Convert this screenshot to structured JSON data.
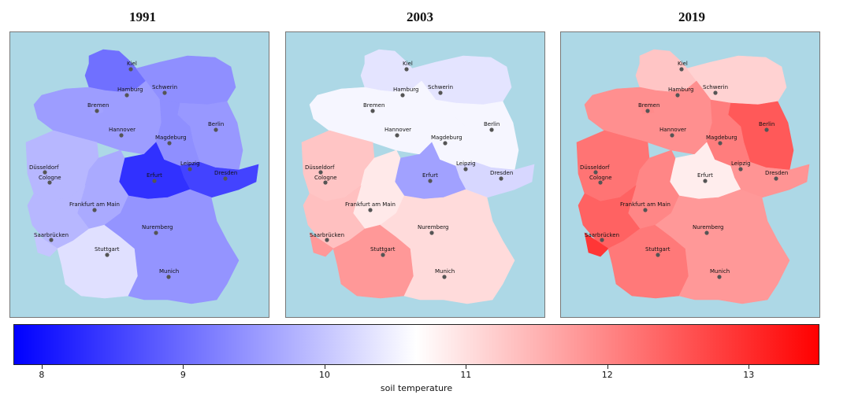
{
  "panels": [
    {
      "year": "1991",
      "regions": {
        "SH": 9.05,
        "MV": 9.4,
        "HH": 9.3,
        "NI": 9.55,
        "HB": 9.6,
        "BE": 9.7,
        "BB": 9.5,
        "ST": 9.4,
        "SN": 8.55,
        "TH": 8.35,
        "NW": 9.85,
        "HE": 9.7,
        "RP": 9.85,
        "SL": 10.0,
        "BW": 10.3,
        "BY": 9.45
      }
    },
    {
      "year": "2003",
      "regions": {
        "SH": 10.35,
        "MV": 10.35,
        "HH": 10.5,
        "NI": 10.55,
        "HB": 10.55,
        "BE": 10.5,
        "BB": 10.55,
        "ST": 10.55,
        "SN": 10.2,
        "TH": 9.6,
        "NW": 11.3,
        "HE": 10.9,
        "RP": 11.35,
        "SL": 11.8,
        "BW": 11.8,
        "BY": 11.05
      }
    },
    {
      "year": "2019",
      "regions": {
        "SH": 11.3,
        "MV": 11.15,
        "HH": 11.7,
        "NI": 11.9,
        "HB": 11.95,
        "BE": 12.7,
        "BB": 12.5,
        "ST": 12.1,
        "SN": 11.85,
        "TH": 10.85,
        "NW": 12.2,
        "HE": 12.0,
        "RP": 12.4,
        "SL": 12.9,
        "BW": 12.15,
        "BY": 11.8
      }
    }
  ],
  "cities": [
    {
      "name": "Kiel"
    },
    {
      "name": "Hamburg"
    },
    {
      "name": "Schwerin"
    },
    {
      "name": "Bremen"
    },
    {
      "name": "Berlin"
    },
    {
      "name": "Hannover"
    },
    {
      "name": "Magdeburg"
    },
    {
      "name": "Düsseldorf"
    },
    {
      "name": "Cologne"
    },
    {
      "name": "Leipzig"
    },
    {
      "name": "Erfurt"
    },
    {
      "name": "Dresden"
    },
    {
      "name": "Frankfurt am Main"
    },
    {
      "name": "Saarbrücken"
    },
    {
      "name": "Nuremberg"
    },
    {
      "name": "Stuttgart"
    },
    {
      "name": "Munich"
    }
  ],
  "colorbar": {
    "label": "soil temperature",
    "min": 7.8,
    "max": 13.5,
    "ticks": [
      "8",
      "9",
      "10",
      "11",
      "12",
      "13"
    ],
    "colors": {
      "low": "#0000ff",
      "mid": "#ffffff",
      "high": "#ff0000"
    }
  },
  "colors": {
    "water": "#add8e6",
    "dot": "#555555"
  }
}
